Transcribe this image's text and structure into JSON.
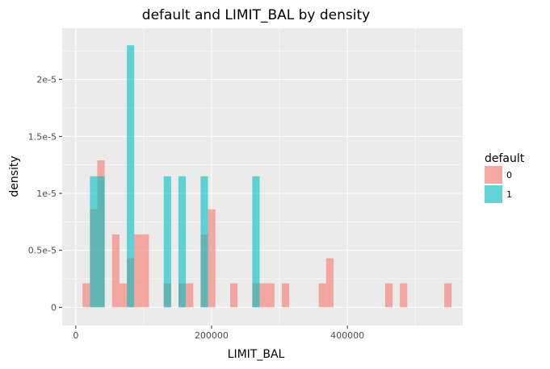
{
  "chart_data": {
    "type": "histogram",
    "title": "default and LIMIT_BAL by density",
    "xlabel": "LIMIT_BAL",
    "ylabel": "density",
    "xlim": [
      -20000,
      570000
    ],
    "ylim": [
      -1.6e-06,
      2.45e-05
    ],
    "x_ticks": [
      {
        "value": 0,
        "label": "0"
      },
      {
        "value": 200000,
        "label": "200000"
      },
      {
        "value": 400000,
        "label": "400000"
      }
    ],
    "y_ticks": [
      {
        "value": 0,
        "label": "0"
      },
      {
        "value": 5e-06,
        "label": "0.5e-5"
      },
      {
        "value": 1e-05,
        "label": "1e-5"
      },
      {
        "value": 1.5e-05,
        "label": "1.5e-5"
      },
      {
        "value": 2e-05,
        "label": "2e-5"
      }
    ],
    "bin_width": 10870,
    "grid": true,
    "legend": {
      "title": "default",
      "position": "right"
    },
    "series": [
      {
        "name": "0",
        "color": "#f8766d",
        "bins": [
          {
            "x": 10000,
            "y": 2.1e-06
          },
          {
            "x": 20870,
            "y": 8.6e-06
          },
          {
            "x": 31740,
            "y": 1.29e-05
          },
          {
            "x": 53480,
            "y": 6.4e-06
          },
          {
            "x": 64350,
            "y": 2.1e-06
          },
          {
            "x": 75220,
            "y": 4.3e-06
          },
          {
            "x": 86090,
            "y": 6.4e-06
          },
          {
            "x": 96960,
            "y": 6.4e-06
          },
          {
            "x": 129570,
            "y": 2.1e-06
          },
          {
            "x": 151310,
            "y": 2.1e-06
          },
          {
            "x": 162180,
            "y": 2.1e-06
          },
          {
            "x": 183920,
            "y": 6.4e-06
          },
          {
            "x": 194790,
            "y": 8.6e-06
          },
          {
            "x": 227400,
            "y": 2.1e-06
          },
          {
            "x": 260010,
            "y": 2.1e-06
          },
          {
            "x": 270880,
            "y": 2.1e-06
          },
          {
            "x": 281750,
            "y": 2.1e-06
          },
          {
            "x": 303490,
            "y": 2.1e-06
          },
          {
            "x": 357840,
            "y": 2.1e-06
          },
          {
            "x": 368710,
            "y": 4.3e-06
          },
          {
            "x": 455670,
            "y": 2.1e-06
          },
          {
            "x": 477410,
            "y": 2.1e-06
          },
          {
            "x": 542630,
            "y": 2.1e-06
          }
        ]
      },
      {
        "name": "1",
        "color": "#00bfc4",
        "bins": [
          {
            "x": 20870,
            "y": 1.15e-05
          },
          {
            "x": 31740,
            "y": 1.15e-05
          },
          {
            "x": 75220,
            "y": 2.3e-05
          },
          {
            "x": 129570,
            "y": 1.15e-05
          },
          {
            "x": 151310,
            "y": 1.15e-05
          },
          {
            "x": 183920,
            "y": 1.15e-05
          },
          {
            "x": 260010,
            "y": 1.15e-05
          }
        ]
      }
    ]
  }
}
